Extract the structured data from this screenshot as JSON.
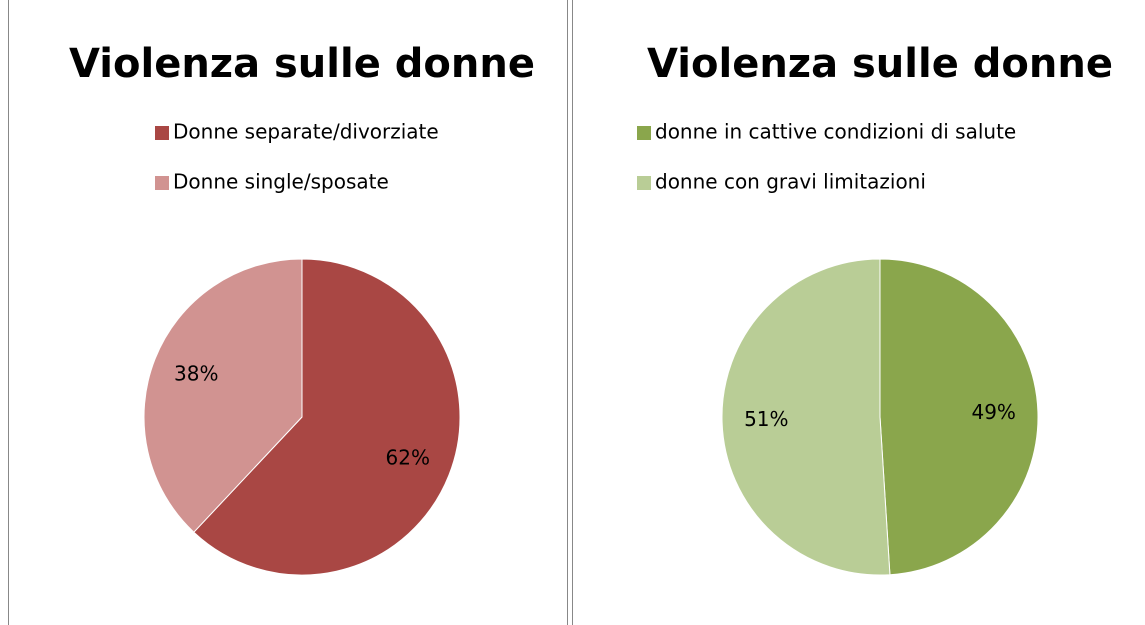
{
  "chart_data": [
    {
      "type": "pie",
      "title": "Violenza sulle donne",
      "categories": [
        "Donne separate/divorziate",
        "Donne single/sposate"
      ],
      "values": [
        62,
        38
      ],
      "value_labels": [
        "62%",
        "38%"
      ],
      "colors": [
        "#a94744",
        "#d19391"
      ],
      "legend": "top"
    },
    {
      "type": "pie",
      "title": "Violenza sulle donne",
      "categories": [
        "donne in cattive condizioni di salute",
        "donne con gravi limitazioni"
      ],
      "values": [
        49,
        51
      ],
      "value_labels": [
        "49%",
        "51%"
      ],
      "colors": [
        "#8aa64c",
        "#b9cd96"
      ],
      "legend": "top"
    }
  ]
}
